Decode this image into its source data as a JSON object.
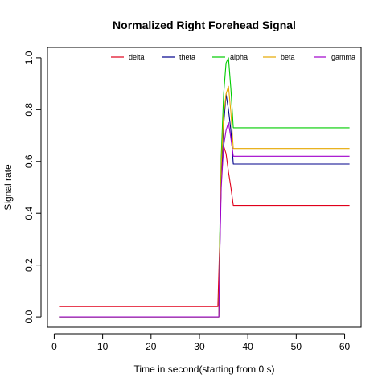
{
  "chart_data": {
    "type": "line",
    "title": "Normalized Right Forehead Signal",
    "xlabel": "Time in second(starting from 0 s)",
    "ylabel": "Signal rate",
    "xlim": [
      -1.4,
      63.4
    ],
    "ylim": [
      -0.04,
      1.04
    ],
    "x_ticks": [
      0,
      10,
      20,
      30,
      40,
      50,
      60
    ],
    "y_ticks": [
      0.0,
      0.2,
      0.4,
      0.6,
      0.8,
      1.0
    ],
    "grid": false,
    "legend_position": "top",
    "series": [
      {
        "name": "delta",
        "color": "#e0001b",
        "points": [
          [
            1,
            0.04
          ],
          [
            33.8,
            0.04
          ],
          [
            34.2,
            0.3
          ],
          [
            34.5,
            0.52
          ],
          [
            35,
            0.66
          ],
          [
            35.5,
            0.63
          ],
          [
            36,
            0.56
          ],
          [
            36.5,
            0.5
          ],
          [
            37,
            0.43
          ],
          [
            61,
            0.43
          ]
        ]
      },
      {
        "name": "theta",
        "color": "#00008b",
        "points": [
          [
            1,
            0.0
          ],
          [
            34,
            0.0
          ],
          [
            34.2,
            0.25
          ],
          [
            34.5,
            0.55
          ],
          [
            35,
            0.74
          ],
          [
            35.5,
            0.86
          ],
          [
            36,
            0.8
          ],
          [
            36.5,
            0.72
          ],
          [
            37,
            0.59
          ],
          [
            61,
            0.59
          ]
        ]
      },
      {
        "name": "alpha",
        "color": "#00cc00",
        "points": [
          [
            1,
            0.0
          ],
          [
            34,
            0.0
          ],
          [
            34.2,
            0.32
          ],
          [
            34.5,
            0.62
          ],
          [
            35,
            0.86
          ],
          [
            35.5,
            0.98
          ],
          [
            36,
            1.0
          ],
          [
            36.5,
            0.88
          ],
          [
            37,
            0.73
          ],
          [
            61,
            0.73
          ]
        ]
      },
      {
        "name": "beta",
        "color": "#e6a800",
        "points": [
          [
            1,
            0.0
          ],
          [
            34,
            0.0
          ],
          [
            34.2,
            0.28
          ],
          [
            34.5,
            0.58
          ],
          [
            35,
            0.78
          ],
          [
            35.5,
            0.86
          ],
          [
            36,
            0.89
          ],
          [
            36.5,
            0.79
          ],
          [
            37,
            0.65
          ],
          [
            61,
            0.65
          ]
        ]
      },
      {
        "name": "gamma",
        "color": "#a000cc",
        "points": [
          [
            1,
            0.0
          ],
          [
            34,
            0.0
          ],
          [
            34.2,
            0.24
          ],
          [
            34.5,
            0.5
          ],
          [
            35,
            0.66
          ],
          [
            35.5,
            0.72
          ],
          [
            36,
            0.75
          ],
          [
            36.5,
            0.69
          ],
          [
            37,
            0.62
          ],
          [
            61,
            0.62
          ]
        ]
      }
    ]
  }
}
